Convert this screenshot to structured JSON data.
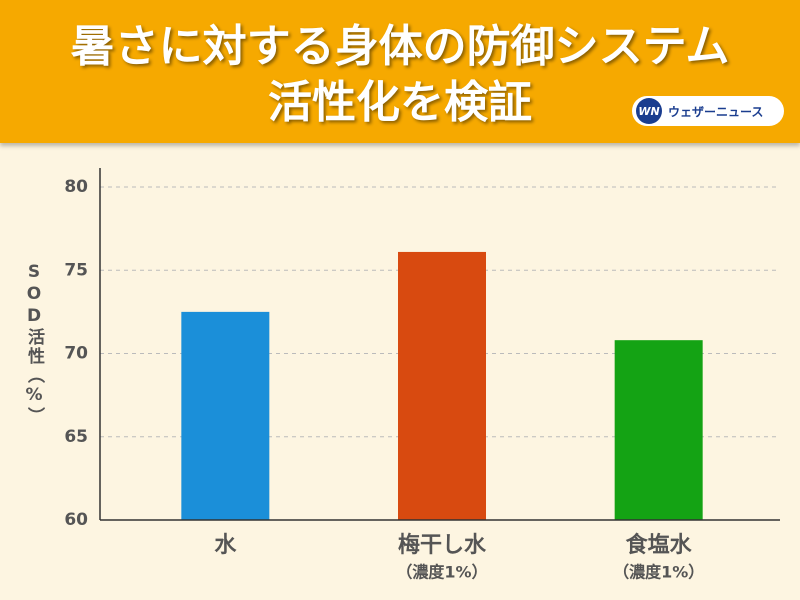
{
  "brand": {
    "mark": "WN",
    "name": "ウェザーニュース"
  },
  "chart_data": {
    "type": "bar",
    "title": [
      "暑さに対する身体の防御システム",
      "活性化を検証"
    ],
    "ylabel": "SOD活性（%）",
    "categories": [
      "水",
      "梅干し水",
      "食塩水"
    ],
    "category_notes": [
      null,
      "（濃度1%）",
      "（濃度1%）"
    ],
    "values": [
      72.5,
      76.1,
      70.8
    ],
    "colors": [
      "#1b8fd9",
      "#d84a10",
      "#14a314"
    ],
    "ylim": [
      60,
      80
    ],
    "yticks": [
      60,
      65,
      70,
      75,
      80
    ],
    "grid": true
  }
}
